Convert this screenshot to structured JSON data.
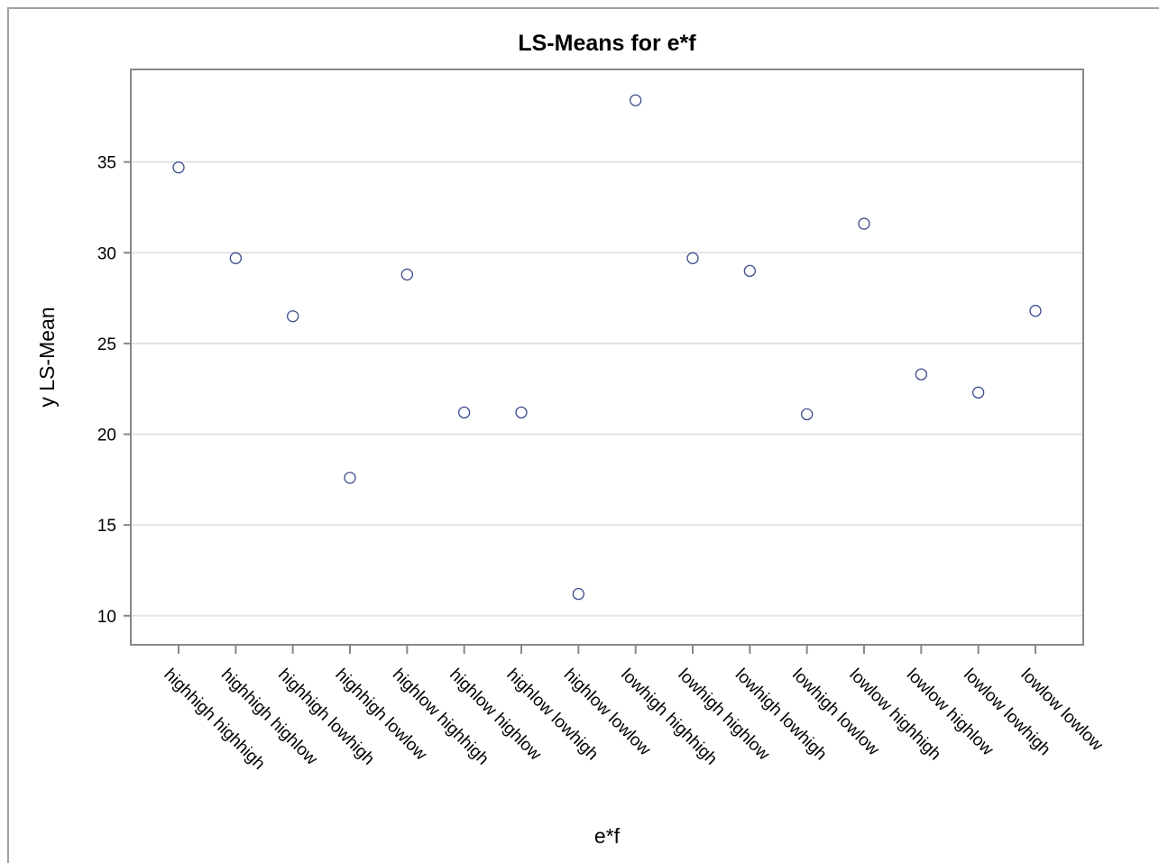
{
  "chart_data": {
    "type": "scatter",
    "title": "LS-Means for e*f",
    "xlabel": "e*f",
    "ylabel": "y LS-Mean",
    "categories": [
      "highhigh highhigh",
      "highhigh highlow",
      "highhigh lowhigh",
      "highhigh lowlow",
      "highlow highhigh",
      "highlow highlow",
      "highlow lowhigh",
      "highlow lowlow",
      "lowhigh highhigh",
      "lowhigh highlow",
      "lowhigh lowhigh",
      "lowhigh lowlow",
      "lowlow highhigh",
      "lowlow highlow",
      "lowlow lowhigh",
      "lowlow lowlow"
    ],
    "values": [
      34.7,
      29.7,
      26.5,
      17.6,
      28.8,
      21.2,
      21.2,
      11.2,
      38.4,
      29.7,
      29.0,
      21.1,
      31.6,
      23.3,
      22.3,
      26.8
    ],
    "yticks": [
      10,
      15,
      20,
      25,
      30,
      35
    ],
    "ylim": [
      8.4,
      40.1
    ],
    "grid": "horizontal",
    "colors": {
      "marker": "#3a4a8c",
      "grid": "#e3e3e3",
      "frame": "#888888"
    }
  }
}
